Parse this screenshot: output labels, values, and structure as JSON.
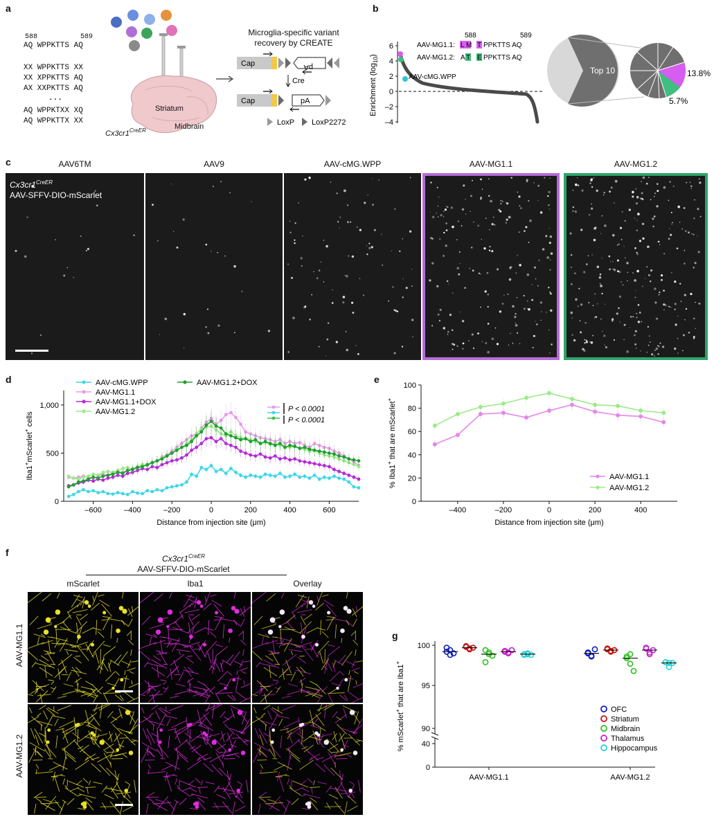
{
  "panel_labels": {
    "a": "a",
    "b": "b",
    "c": "c",
    "d": "d",
    "e": "e",
    "f": "f",
    "g": "g"
  },
  "panel_a": {
    "pos_left": "588",
    "pos_right": "589",
    "sequences": [
      "AQ WPPKTTS AQ",
      "XX WPPKTTS XX",
      "XX XPPKTTS AQ",
      "AX XXPKTTS AQ",
      "...",
      "AQ WPPKTXX XQ",
      "AQ WPPKTTX XX"
    ],
    "striatum": "Striatum",
    "midbrain": "Midbrain",
    "mouse_line_base": "Cx3cr1",
    "mouse_line_sup": "CreER",
    "recovery_title_1": "Microglia-specific variant",
    "recovery_title_2": "recovery by CREATE",
    "cap": "Cap",
    "pa": "pA",
    "cre": "Cre",
    "loxp": "LoxP",
    "loxp2272": "LoxP2272"
  },
  "panel_b": {
    "ylabel_base": "Enrichment (log",
    "ylabel_sub": "10",
    "ylabel_end": ")",
    "yticks": [
      "6",
      "4",
      "2",
      "0",
      "–2",
      "–4"
    ],
    "pos_588": "588",
    "pos_589": "589",
    "mg11_name": "AAV-MG1.1:",
    "mg11_seq": [
      "L",
      "M",
      " ",
      "T",
      "PPKTTS AQ"
    ],
    "mg12_name": "AAV-MG1.2:",
    "mg12_seq": [
      "A",
      "T",
      " ",
      "E",
      "PPKTTS AQ"
    ],
    "cmg_label": "AAV-cMG.WPP",
    "top10": "Top 10",
    "pct1": "13.8%",
    "pct2": "5.7%",
    "colors": {
      "magenta": "#d75df0",
      "green": "#3fbf7f",
      "cyan": "#2ec4d6"
    }
  },
  "panel_c": {
    "columns": [
      "AAV6TM",
      "AAV9",
      "AAV-cMG.WPP",
      "AAV-MG1.1",
      "AAV-MG1.2"
    ],
    "mouse_line_base": "Cx3cr1",
    "mouse_line_sup": "CreER",
    "construct": "AAV-SFFV-DIO-mScarlet",
    "intensity": [
      0.06,
      0.1,
      0.35,
      0.75,
      1.0
    ],
    "border_colors": {
      "mg11": "#b56bd6",
      "mg12": "#2fa36b"
    }
  },
  "chart_data": [
    {
      "id": "d",
      "type": "line",
      "ylabel_base": "Iba1",
      "ylabel_mid": "mScarlet",
      "ylabel_end": " cells",
      "xlabel": "Distance from injection site (μm)",
      "xlim": [
        -750,
        750
      ],
      "ylim": [
        0,
        1150
      ],
      "xticks": [
        "–600",
        "–400",
        "–200",
        "0",
        "200",
        "400",
        "600"
      ],
      "xtick_values": [
        -600,
        -400,
        -200,
        0,
        200,
        400,
        600
      ],
      "yticks": [
        "0",
        "500",
        "1,000"
      ],
      "ytick_values": [
        0,
        500,
        1000
      ],
      "legend": {
        "cmg": "AAV-cMG.WPP",
        "mg11": "AAV-MG1.1",
        "mg11dox": "AAV-MG1.1+DOX",
        "mg12": "AAV-MG1.2",
        "mg12dox": "AAV-MG1.2+DOX"
      },
      "pvalue_1": "P < 0.0001",
      "pvalue_2": "P < 0.0001",
      "x": [
        -725,
        -700,
        -675,
        -650,
        -625,
        -600,
        -575,
        -550,
        -525,
        -500,
        -475,
        -450,
        -425,
        -400,
        -375,
        -350,
        -325,
        -300,
        -275,
        -250,
        -225,
        -200,
        -175,
        -150,
        -125,
        -100,
        -75,
        -50,
        -25,
        0,
        25,
        50,
        75,
        100,
        125,
        150,
        175,
        200,
        225,
        250,
        275,
        300,
        325,
        350,
        375,
        400,
        425,
        450,
        475,
        500,
        525,
        550,
        575,
        600,
        625,
        650,
        675,
        700,
        725,
        750
      ],
      "series": [
        {
          "name": "AAV-cMG.WPP",
          "color": "#3fd6e8",
          "values": [
            50,
            70,
            100,
            120,
            100,
            110,
            90,
            100,
            80,
            75,
            90,
            80,
            70,
            100,
            85,
            80,
            110,
            100,
            120,
            110,
            140,
            150,
            160,
            170,
            200,
            280,
            260,
            350,
            330,
            370,
            310,
            330,
            290,
            340,
            300,
            270,
            250,
            270,
            260,
            250,
            280,
            270,
            260,
            290,
            250,
            260,
            280,
            250,
            260,
            240,
            270,
            230,
            250,
            240,
            260,
            240,
            230,
            200,
            150,
            140
          ]
        },
        {
          "name": "AAV-MG1.1",
          "color": "#e79be8",
          "values": [
            250,
            240,
            250,
            260,
            250,
            240,
            260,
            280,
            270,
            300,
            310,
            300,
            320,
            340,
            360,
            380,
            370,
            400,
            420,
            460,
            480,
            520,
            560,
            600,
            640,
            680,
            700,
            760,
            820,
            860,
            800,
            840,
            900,
            920,
            870,
            800,
            720,
            700,
            680,
            660,
            650,
            640,
            620,
            640,
            600,
            620,
            600,
            610,
            580,
            560,
            600,
            580,
            560,
            550,
            520,
            500,
            470,
            440,
            410,
            370
          ]
        },
        {
          "name": "AAV-MG1.1+DOX",
          "color": "#b32ad6",
          "values": [
            160,
            170,
            190,
            200,
            220,
            210,
            230,
            220,
            240,
            250,
            270,
            260,
            290,
            300,
            320,
            340,
            330,
            360,
            350,
            380,
            400,
            420,
            430,
            450,
            480,
            530,
            560,
            600,
            650,
            660,
            620,
            650,
            600,
            580,
            560,
            520,
            500,
            480,
            470,
            490,
            460,
            450,
            470,
            440,
            450,
            430,
            440,
            420,
            410,
            400,
            390,
            380,
            370,
            360,
            330,
            310,
            290,
            270,
            250,
            230
          ]
        },
        {
          "name": "AAV-MG1.2",
          "color": "#9cea8a",
          "values": [
            260,
            240,
            230,
            250,
            260,
            280,
            270,
            300,
            310,
            300,
            320,
            340,
            350,
            330,
            360,
            380,
            370,
            400,
            420,
            450,
            470,
            500,
            540,
            560,
            600,
            640,
            700,
            750,
            770,
            780,
            740,
            700,
            680,
            720,
            680,
            660,
            650,
            640,
            620,
            600,
            610,
            590,
            600,
            580,
            570,
            560,
            570,
            550,
            540,
            520,
            530,
            500,
            480,
            470,
            460,
            440,
            420,
            400,
            380,
            360
          ]
        },
        {
          "name": "AAV-MG1.2+DOX",
          "color": "#1f9e2e",
          "values": [
            150,
            170,
            200,
            210,
            230,
            250,
            240,
            260,
            270,
            280,
            300,
            290,
            320,
            330,
            350,
            360,
            380,
            400,
            420,
            440,
            470,
            500,
            530,
            560,
            580,
            620,
            680,
            720,
            790,
            830,
            780,
            760,
            700,
            680,
            660,
            640,
            650,
            620,
            640,
            600,
            620,
            600,
            580,
            600,
            560,
            580,
            570,
            550,
            560,
            540,
            530,
            520,
            510,
            500,
            490,
            470,
            460,
            440,
            430,
            420
          ]
        }
      ]
    },
    {
      "id": "e",
      "type": "line",
      "ylabel_base": "% Iba1",
      "ylabel_mid": " that are mScarlet",
      "xlabel": "Distance from injection site (μm)",
      "xlim": [
        -560,
        560
      ],
      "ylim": [
        0,
        100
      ],
      "xticks": [
        "–400",
        "–200",
        "0",
        "200",
        "400"
      ],
      "xtick_values": [
        -400,
        -200,
        0,
        200,
        400
      ],
      "yticks": [
        "0",
        "20",
        "40",
        "60",
        "80",
        "100"
      ],
      "ytick_values": [
        0,
        20,
        40,
        60,
        80,
        100
      ],
      "x": [
        -500,
        -400,
        -300,
        -200,
        -100,
        0,
        100,
        200,
        300,
        400,
        500
      ],
      "series": [
        {
          "name": "AAV-MG1.1",
          "color": "#e487e8",
          "values": [
            49,
            57,
            75,
            76,
            72,
            78,
            83,
            77,
            74,
            73,
            68
          ]
        },
        {
          "name": "AAV-MG1.2",
          "color": "#9cea8a",
          "values": [
            65,
            75,
            81,
            84,
            89,
            93,
            88,
            83,
            82,
            78,
            76
          ]
        }
      ]
    },
    {
      "id": "g",
      "type": "scatter",
      "ylabel_base": "% mScarlet",
      "ylabel_mid": " that are Iba1",
      "categories": [
        "AAV-MG1.1",
        "AAV-MG1.2"
      ],
      "yticks": [
        "0",
        "40",
        "90",
        "95",
        "100"
      ],
      "regions": [
        "OFC",
        "Striatum",
        "Midbrain",
        "Thalamus",
        "Hippocampus"
      ],
      "region_colors": [
        "#0a1fc4",
        "#d01010",
        "#2dbf1e",
        "#c81ed0",
        "#21d3d9"
      ],
      "points": {
        "AAV-MG1.1": [
          [
            99.7,
            99.4,
            99.0,
            99.2,
            98.8
          ],
          [
            99.8,
            99.5,
            99.7,
            99.9,
            99.6
          ],
          [
            99.4,
            98.9,
            98.7,
            97.9,
            99.1
          ],
          [
            99.3,
            99.1,
            99.4,
            99.2,
            99.0
          ],
          [
            98.9,
            99.0,
            98.8,
            98.8,
            98.9
          ]
        ],
        "AAV-MG1.2": [
          [
            99.0,
            98.7,
            99.5,
            99.1,
            98.6
          ],
          [
            99.6,
            99.3,
            99.4,
            99.5,
            99.2
          ],
          [
            98.6,
            97.7,
            96.8,
            98.4,
            98.9
          ],
          [
            99.7,
            99.1,
            99.4,
            99.6,
            98.9
          ],
          [
            97.9,
            97.3,
            97.8,
            97.9,
            97.8
          ]
        ]
      },
      "medians": {
        "AAV-MG1.1": [
          99.2,
          99.7,
          98.9,
          99.2,
          98.9
        ],
        "AAV-MG1.2": [
          99.0,
          99.4,
          98.4,
          99.4,
          97.8
        ]
      }
    }
  ],
  "panel_f": {
    "mouse_line_base": "Cx3cr1",
    "mouse_line_sup": "CreER",
    "construct": "AAV-SFFV-DIO-mScarlet",
    "columns": [
      "mScarlet",
      "Iba1",
      "Overlay"
    ],
    "rows": [
      "AAV-MG1.1",
      "AAV-MG1.2"
    ],
    "colors": {
      "yellow": "#e8e02a",
      "magenta": "#e02ae0"
    }
  }
}
